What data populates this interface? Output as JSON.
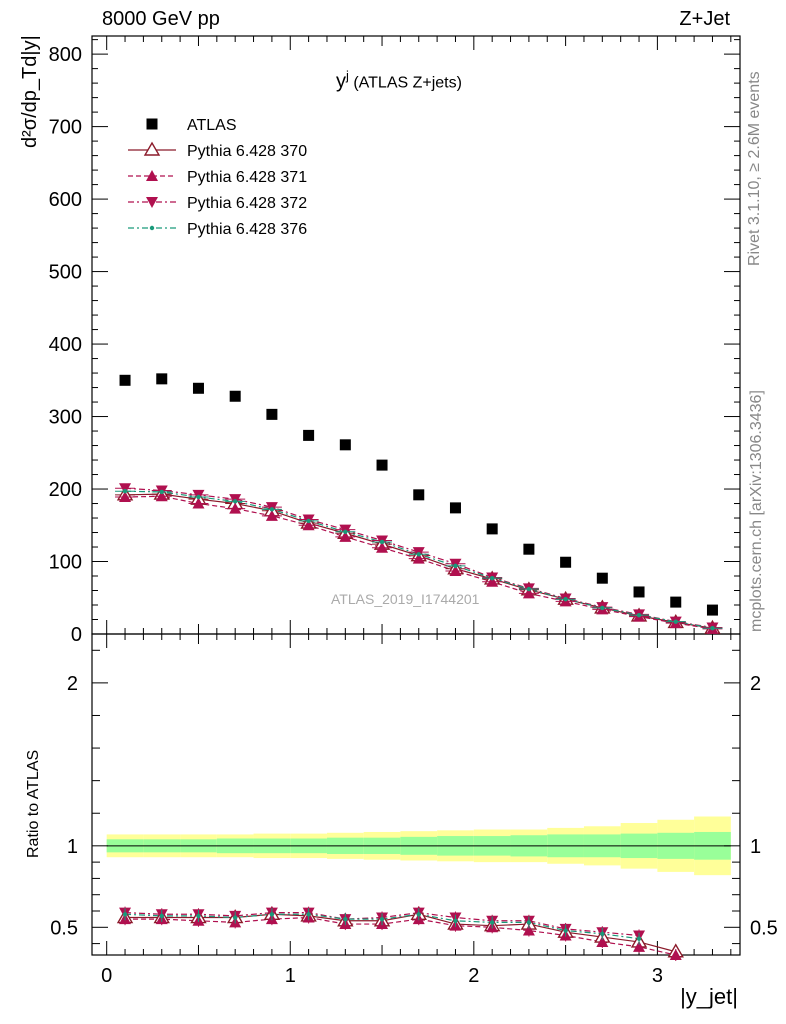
{
  "header": {
    "left": "8000 GeV pp",
    "right": "Z+Jet",
    "plot_title_main": "y",
    "plot_title_sup": "j",
    "plot_title_sub": " (ATLAS Z+jets)",
    "watermark": "ATLAS_2019_I1744201",
    "side_top": "Rivet 3.1.10, ≥ 2.6M events",
    "side_bottom": "mcplots.cern.ch [arXiv:1306.3436]"
  },
  "colors": {
    "data": "#000000",
    "p370": "#8b1a2a",
    "p371": "#b0104f",
    "p372": "#b0104f",
    "p376": "#1a9a7a",
    "band_inner": "#99ff99",
    "band_outer": "#ffff99"
  },
  "chart_data": [
    {
      "type": "scatter",
      "panel": "main",
      "ylabel": "d²σ/dp_Td|y|",
      "ylim": [
        0,
        825
      ],
      "xlim": [
        -0.08,
        3.45
      ],
      "yticks": [
        0,
        100,
        200,
        300,
        400,
        500,
        600,
        700,
        800
      ],
      "x": [
        0.1,
        0.3,
        0.5,
        0.7,
        0.9,
        1.1,
        1.3,
        1.5,
        1.7,
        1.9,
        2.1,
        2.3,
        2.5,
        2.7,
        2.9,
        3.1,
        3.3
      ],
      "legend_position": "top-left",
      "series": [
        {
          "name": "ATLAS",
          "marker": "square",
          "values": [
            350,
            352,
            339,
            328,
            303,
            274,
            261,
            233,
            192,
            174,
            145,
            117,
            99,
            77,
            58,
            44,
            33
          ]
        },
        {
          "name": "Pythia 6.428 370",
          "marker": "open-triangle-up",
          "line": "solid",
          "values": [
            192,
            193,
            186,
            180,
            170,
            153,
            139,
            124,
            108,
            90,
            76,
            61,
            48,
            36,
            25,
            16,
            8
          ]
        },
        {
          "name": "Pythia 6.428 371",
          "marker": "triangle-up",
          "line": "dashed",
          "values": [
            189,
            190,
            180,
            173,
            163,
            150,
            134,
            119,
            104,
            87,
            72,
            56,
            45,
            34,
            24,
            15,
            7
          ]
        },
        {
          "name": "Pythia 6.428 372",
          "marker": "triangle-down",
          "line": "dash-dot",
          "values": [
            201,
            198,
            192,
            186,
            175,
            158,
            144,
            129,
            113,
            97,
            78,
            63,
            49,
            37,
            27,
            17,
            9
          ]
        },
        {
          "name": "Pythia 6.428 376",
          "marker": "small-circle",
          "line": "dash-dot",
          "values": [
            197,
            196,
            189,
            183,
            172,
            156,
            141,
            127,
            110,
            94,
            77,
            62,
            48,
            36,
            26,
            17,
            8
          ]
        }
      ]
    },
    {
      "type": "line",
      "panel": "ratio",
      "ylabel": "Ratio to ATLAS",
      "xlabel": "|y_jet|",
      "ylim": [
        0.33,
        2.3
      ],
      "xlim": [
        -0.08,
        3.45
      ],
      "yticks": [
        0.5,
        1,
        2
      ],
      "xticks": [
        0,
        1,
        2,
        3
      ],
      "x": [
        0.1,
        0.3,
        0.5,
        0.7,
        0.9,
        1.1,
        1.3,
        1.5,
        1.7,
        1.9,
        2.1,
        2.3,
        2.5,
        2.7,
        2.9,
        3.1
      ],
      "band_edges": [
        0,
        0.2,
        0.4,
        0.6,
        0.8,
        1.0,
        1.2,
        1.4,
        1.6,
        1.8,
        2.0,
        2.2,
        2.4,
        2.6,
        2.8,
        3.0,
        3.2,
        3.4
      ],
      "band_inner": [
        0.04,
        0.04,
        0.04,
        0.045,
        0.045,
        0.045,
        0.05,
        0.05,
        0.055,
        0.06,
        0.06,
        0.065,
        0.07,
        0.07,
        0.075,
        0.08,
        0.085
      ],
      "band_outer": [
        0.07,
        0.07,
        0.07,
        0.07,
        0.075,
        0.075,
        0.08,
        0.085,
        0.09,
        0.095,
        0.1,
        0.1,
        0.11,
        0.12,
        0.14,
        0.16,
        0.18
      ],
      "series": [
        {
          "name": "Pythia 6.428 370",
          "values": [
            0.56,
            0.56,
            0.56,
            0.56,
            0.58,
            0.57,
            0.54,
            0.54,
            0.58,
            0.52,
            0.51,
            0.52,
            0.47,
            0.44,
            0.41,
            0.35
          ]
        },
        {
          "name": "Pythia 6.428 371",
          "values": [
            0.55,
            0.55,
            0.54,
            0.53,
            0.55,
            0.56,
            0.52,
            0.52,
            0.55,
            0.51,
            0.5,
            0.48,
            0.45,
            0.41,
            0.38,
            0.33
          ]
        },
        {
          "name": "Pythia 6.428 372",
          "values": [
            0.59,
            0.58,
            0.58,
            0.57,
            0.59,
            0.59,
            0.55,
            0.56,
            0.59,
            0.56,
            0.54,
            0.54,
            0.49,
            0.47,
            0.45,
            null
          ]
        },
        {
          "name": "Pythia 6.428 376",
          "values": [
            0.58,
            0.57,
            0.57,
            0.56,
            0.58,
            0.58,
            0.55,
            0.55,
            0.58,
            0.54,
            0.53,
            0.53,
            0.48,
            0.46,
            0.43,
            null
          ]
        }
      ]
    }
  ]
}
